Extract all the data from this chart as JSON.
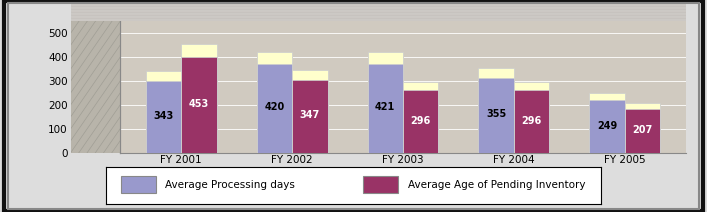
{
  "categories": [
    "FY 2001",
    "FY 2002",
    "FY 2003",
    "FY 2004",
    "FY 2005"
  ],
  "processing_days": [
    343,
    420,
    421,
    355,
    249
  ],
  "pending_inventory": [
    453,
    347,
    296,
    296,
    207
  ],
  "bar_color_blue": "#9999CC",
  "bar_color_maroon": "#993366",
  "bar_top_color": "#FFFFCC",
  "legend_labels": [
    "Average Processing days",
    "Average Age of Pending Inventory"
  ],
  "ylim": [
    0,
    550
  ],
  "yticks": [
    0,
    100,
    200,
    300,
    400,
    500
  ],
  "bar_width": 0.32,
  "value_fontsize": 7,
  "tick_fontsize": 7.5,
  "legend_fontsize": 7.5,
  "outer_border_color": "#333333",
  "inner_border_color": "#888888",
  "fig_bg": "#DDDDDD",
  "plot_area_bg": "#C8C4B8",
  "floor_color": "#AAAAAA"
}
